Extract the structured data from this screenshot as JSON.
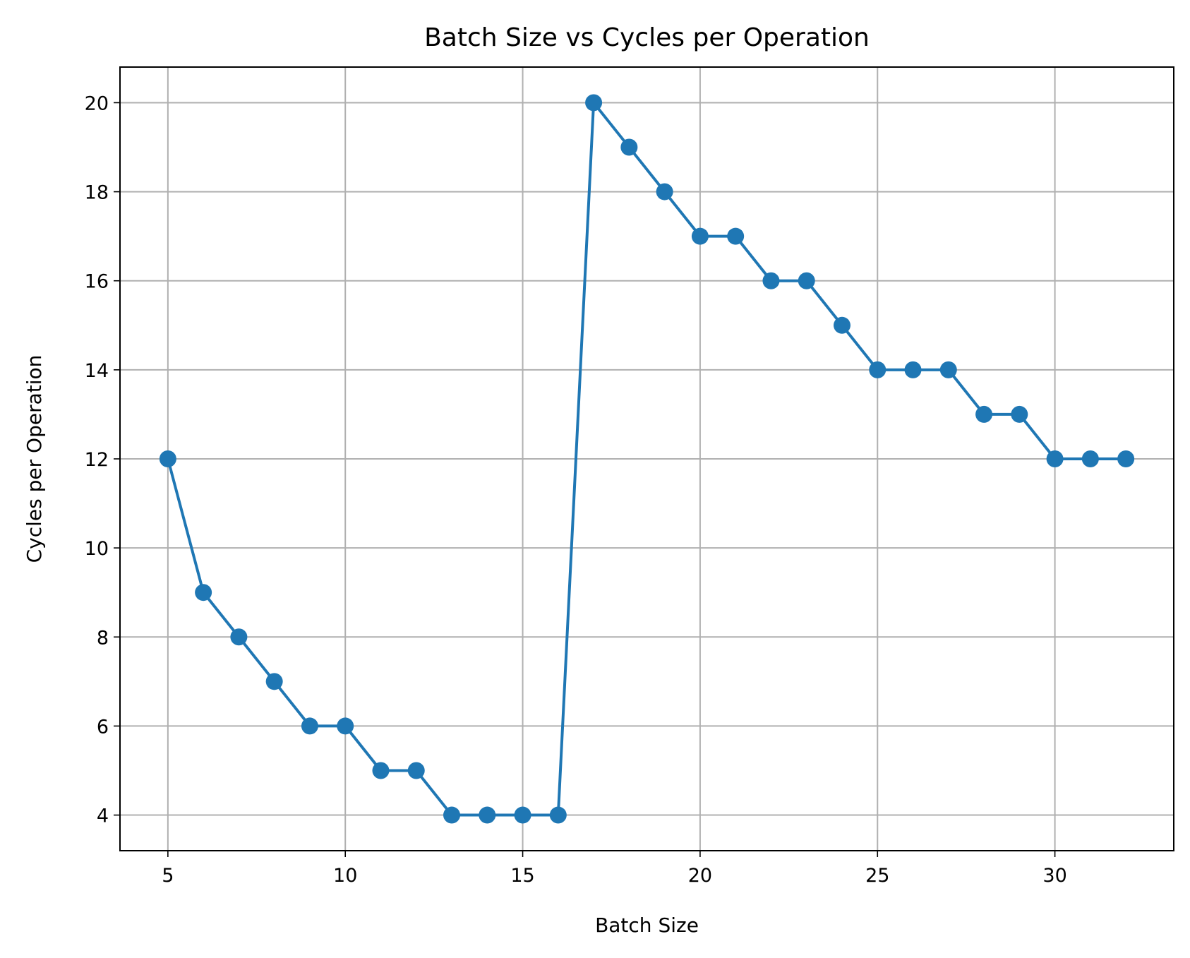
{
  "chart_data": {
    "type": "line",
    "title": "Batch Size vs Cycles per Operation",
    "xlabel": "Batch Size",
    "ylabel": "Cycles per Operation",
    "xlim": [
      3.65,
      33.35
    ],
    "ylim": [
      3.2,
      20.8
    ],
    "xticks": [
      5,
      10,
      15,
      20,
      25,
      30
    ],
    "yticks": [
      4,
      6,
      8,
      10,
      12,
      14,
      16,
      18,
      20
    ],
    "grid": true,
    "marker": "circle",
    "color": "#1f77b4",
    "series": [
      {
        "x": [
          5,
          6,
          7,
          8,
          9,
          10,
          11,
          12,
          13,
          14,
          15,
          16,
          17,
          18,
          19,
          20,
          21,
          22,
          23,
          24,
          25,
          26,
          27,
          28,
          29,
          30,
          31,
          32
        ],
        "y": [
          12,
          9,
          8,
          7,
          6,
          6,
          5,
          5,
          4,
          4,
          4,
          4,
          20,
          19,
          18,
          17,
          17,
          16,
          16,
          15,
          14,
          14,
          14,
          13,
          13,
          12,
          12,
          12
        ]
      }
    ]
  }
}
